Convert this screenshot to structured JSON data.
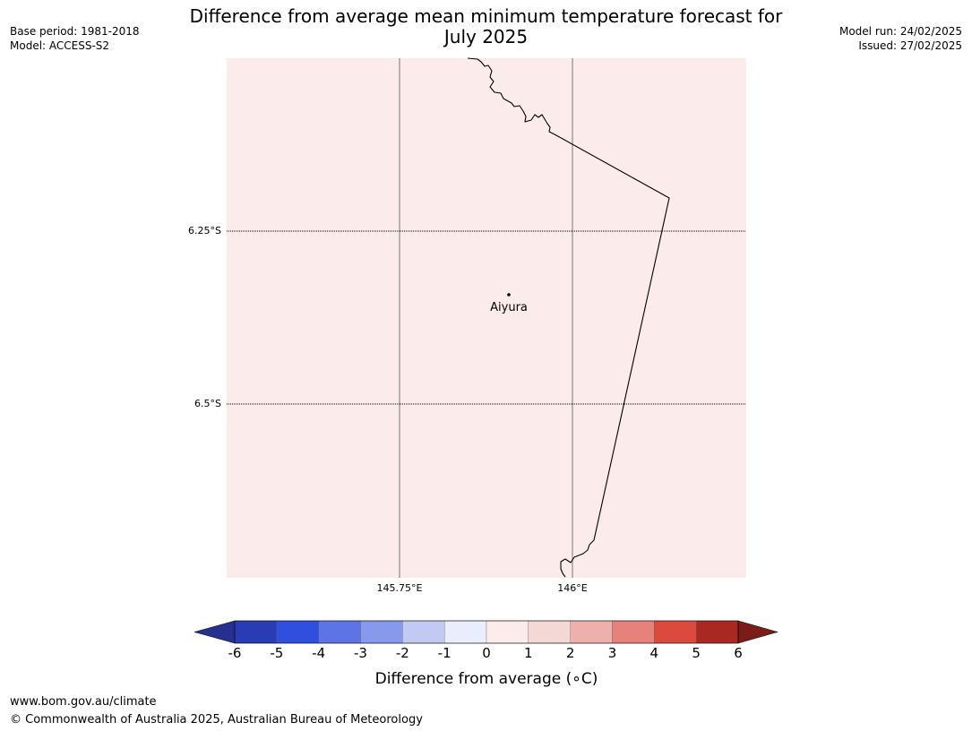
{
  "header": {
    "title_line1": "Difference from average mean minimum temperature forecast for",
    "title_line2": "July 2025",
    "base_period": "Base period: 1981-2018",
    "model": "Model: ACCESS-S2",
    "model_run": "Model run: 24/02/2025",
    "issued": "Issued: 27/02/2025"
  },
  "map": {
    "background_color": "#fbebea",
    "lat_labels": [
      "6.25°S",
      "6.5°S"
    ],
    "lon_labels": [
      "145.75°E",
      "146°E"
    ],
    "place": {
      "name": "Aiyura"
    }
  },
  "colorbar": {
    "label": "Difference from average (∘C)",
    "ticks": [
      "-6",
      "-5",
      "-4",
      "-3",
      "-2",
      "-1",
      "0",
      "1",
      "2",
      "3",
      "4",
      "5",
      "6"
    ],
    "colors": [
      "#25308f",
      "#2a3cb3",
      "#2f4fdf",
      "#5c74e6",
      "#8799ec",
      "#c2caf4",
      "#eaedfb",
      "#fbebea",
      "#f4d8d6",
      "#eeb0ac",
      "#e6817c",
      "#dc4a3e",
      "#aa2822",
      "#7a1c18"
    ]
  },
  "footer": {
    "url": "www.bom.gov.au/climate",
    "copyright": "© Commonwealth of Australia 2025, Australian Bureau of Meteorology"
  }
}
